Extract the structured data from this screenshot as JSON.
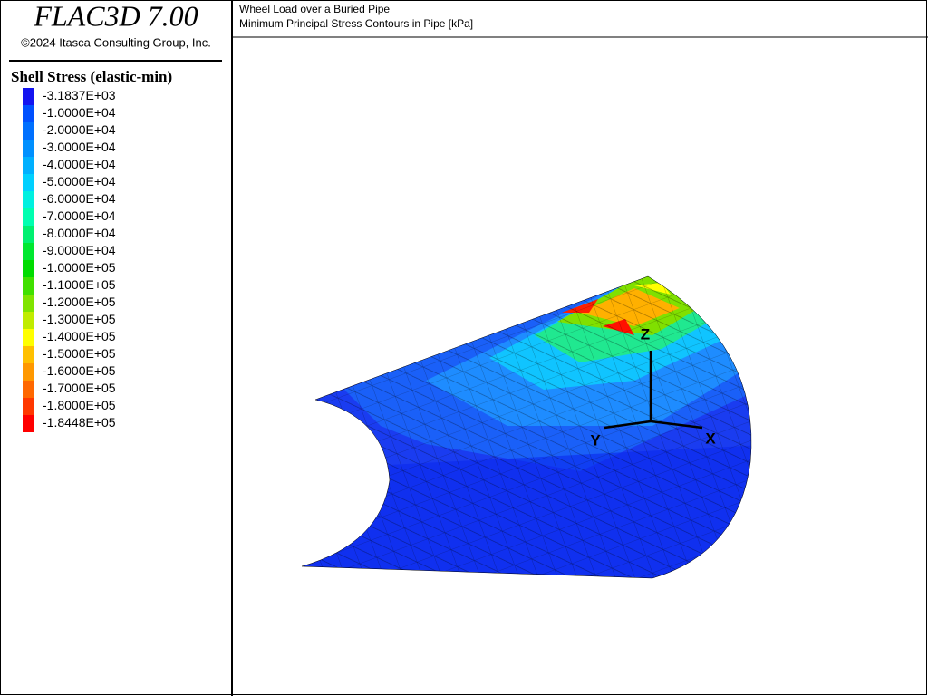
{
  "app": {
    "title": "FLAC3D 7.00",
    "copyright": "©2024 Itasca Consulting Group, Inc."
  },
  "legend": {
    "title": "Shell Stress (elastic-min)",
    "entries": [
      {
        "label": "-3.1837E+03",
        "color": "#1414f0"
      },
      {
        "label": "-1.0000E+04",
        "color": "#0050ff"
      },
      {
        "label": "-2.0000E+04",
        "color": "#0070ff"
      },
      {
        "label": "-3.0000E+04",
        "color": "#0090ff"
      },
      {
        "label": "-4.0000E+04",
        "color": "#00b0ff"
      },
      {
        "label": "-5.0000E+04",
        "color": "#00d0ff"
      },
      {
        "label": "-6.0000E+04",
        "color": "#00f0e0"
      },
      {
        "label": "-7.0000E+04",
        "color": "#00ffb0"
      },
      {
        "label": "-8.0000E+04",
        "color": "#00f070"
      },
      {
        "label": "-9.0000E+04",
        "color": "#00e830"
      },
      {
        "label": "-1.0000E+05",
        "color": "#00dc00"
      },
      {
        "label": "-1.1000E+05",
        "color": "#40e000"
      },
      {
        "label": "-1.2000E+05",
        "color": "#80e400"
      },
      {
        "label": "-1.3000E+05",
        "color": "#c0ec00"
      },
      {
        "label": "-1.4000E+05",
        "color": "#ffff00"
      },
      {
        "label": "-1.5000E+05",
        "color": "#ffc000"
      },
      {
        "label": "-1.6000E+05",
        "color": "#ff9800"
      },
      {
        "label": "-1.7000E+05",
        "color": "#ff6800"
      },
      {
        "label": "-1.8000E+05",
        "color": "#ff3800"
      },
      {
        "label": "-1.8448E+05",
        "color": "#ff0000"
      }
    ]
  },
  "plot": {
    "title_lines": [
      "Wheel Load over a Buried Pipe",
      "Minimum Principal Stress Contours in Pipe [kPa]"
    ],
    "axes": {
      "z": "Z",
      "y": "Y",
      "x": "X"
    }
  }
}
